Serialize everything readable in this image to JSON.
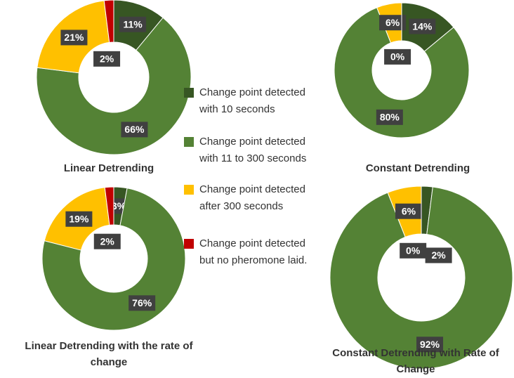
{
  "legend": [
    {
      "lines": [
        "Change point detected",
        "with 10 seconds"
      ],
      "color": "#375623"
    },
    {
      "lines": [
        "Change point detected",
        "with 11 to 300 seconds"
      ],
      "color": "#548235"
    },
    {
      "lines": [
        "Change point detected",
        "after 300 seconds"
      ],
      "color": "#ffc000"
    },
    {
      "lines": [
        "Change point detected",
        "but no pheromone laid."
      ],
      "color": "#c00000"
    }
  ],
  "chart_data": [
    {
      "type": "donut",
      "title": [
        "Linear Detrending"
      ],
      "values": [
        11,
        66,
        21,
        2
      ],
      "value_labels": [
        "11%",
        "66%",
        "21%",
        "2%"
      ]
    },
    {
      "type": "donut",
      "title": [
        "Constant Detrending"
      ],
      "values": [
        14,
        80,
        6,
        0
      ],
      "value_labels": [
        "14%",
        "80%",
        "6%",
        "0%"
      ]
    },
    {
      "type": "donut",
      "title": [
        "Linear Detrending with  the rate of",
        "change"
      ],
      "values": [
        3,
        76,
        19,
        2
      ],
      "value_labels": [
        "3%",
        "76%",
        "19%",
        "2%"
      ]
    },
    {
      "type": "donut",
      "title": [
        "Constant Detrending with Rate of",
        "Change"
      ],
      "values": [
        2,
        92,
        6,
        0
      ],
      "value_labels": [
        "2%",
        "92%",
        "6%",
        "0%"
      ]
    }
  ]
}
